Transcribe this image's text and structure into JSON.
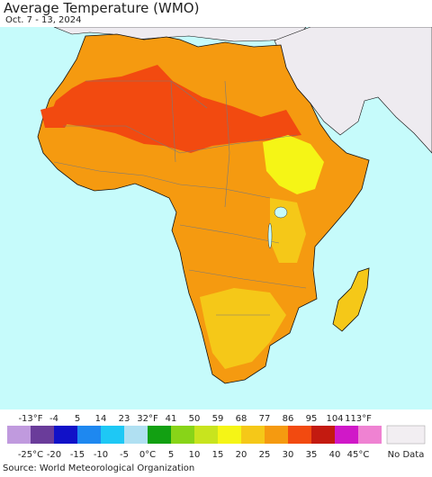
{
  "title": "Average Temperature (WMO)",
  "date_range": "Oct. 7 - 13, 2024",
  "source": "Source: World Meteorological Organization",
  "colors": {
    "ocean": "#c6fbfb",
    "land_other": "#eeebf0",
    "border": "#7a7a7a",
    "outline": "#111111"
  },
  "legend": {
    "fahrenheit_labels": [
      "-13°F",
      "-4",
      "5",
      "14",
      "23",
      "32°F",
      "41",
      "50",
      "59",
      "68",
      "77",
      "86",
      "95",
      "104",
      "113°F"
    ],
    "celsius_labels": [
      "-25°C",
      "-20",
      "-15",
      "-10",
      "-5",
      "0°C",
      "5",
      "10",
      "15",
      "20",
      "25",
      "30",
      "35",
      "40",
      "45°C"
    ],
    "colors": [
      "#c09ade",
      "#6a3c9a",
      "#1111c8",
      "#1e88f0",
      "#1ec8f5",
      "#b0e0f2",
      "#12a012",
      "#88d418",
      "#c8e41e",
      "#f5f516",
      "#f5c818",
      "#f59a10",
      "#f24a10",
      "#c31a10",
      "#d018c8",
      "#ef82d2"
    ],
    "no_data_label": "No Data",
    "no_data_color": "#f2eef2"
  },
  "map": {
    "regions": [
      {
        "name": "Africa",
        "temperature_band": "25 to 30°C"
      },
      {
        "name": "Sahara",
        "temperature_band": "30 to 35°C"
      },
      {
        "name": "Southern Africa",
        "temperature_band": "20 to 25°C"
      },
      {
        "name": "Ethiopian Highlands",
        "temperature_band": "15 to 20°C"
      },
      {
        "name": "Madagascar",
        "temperature_band": "20 to 25°C"
      }
    ]
  }
}
